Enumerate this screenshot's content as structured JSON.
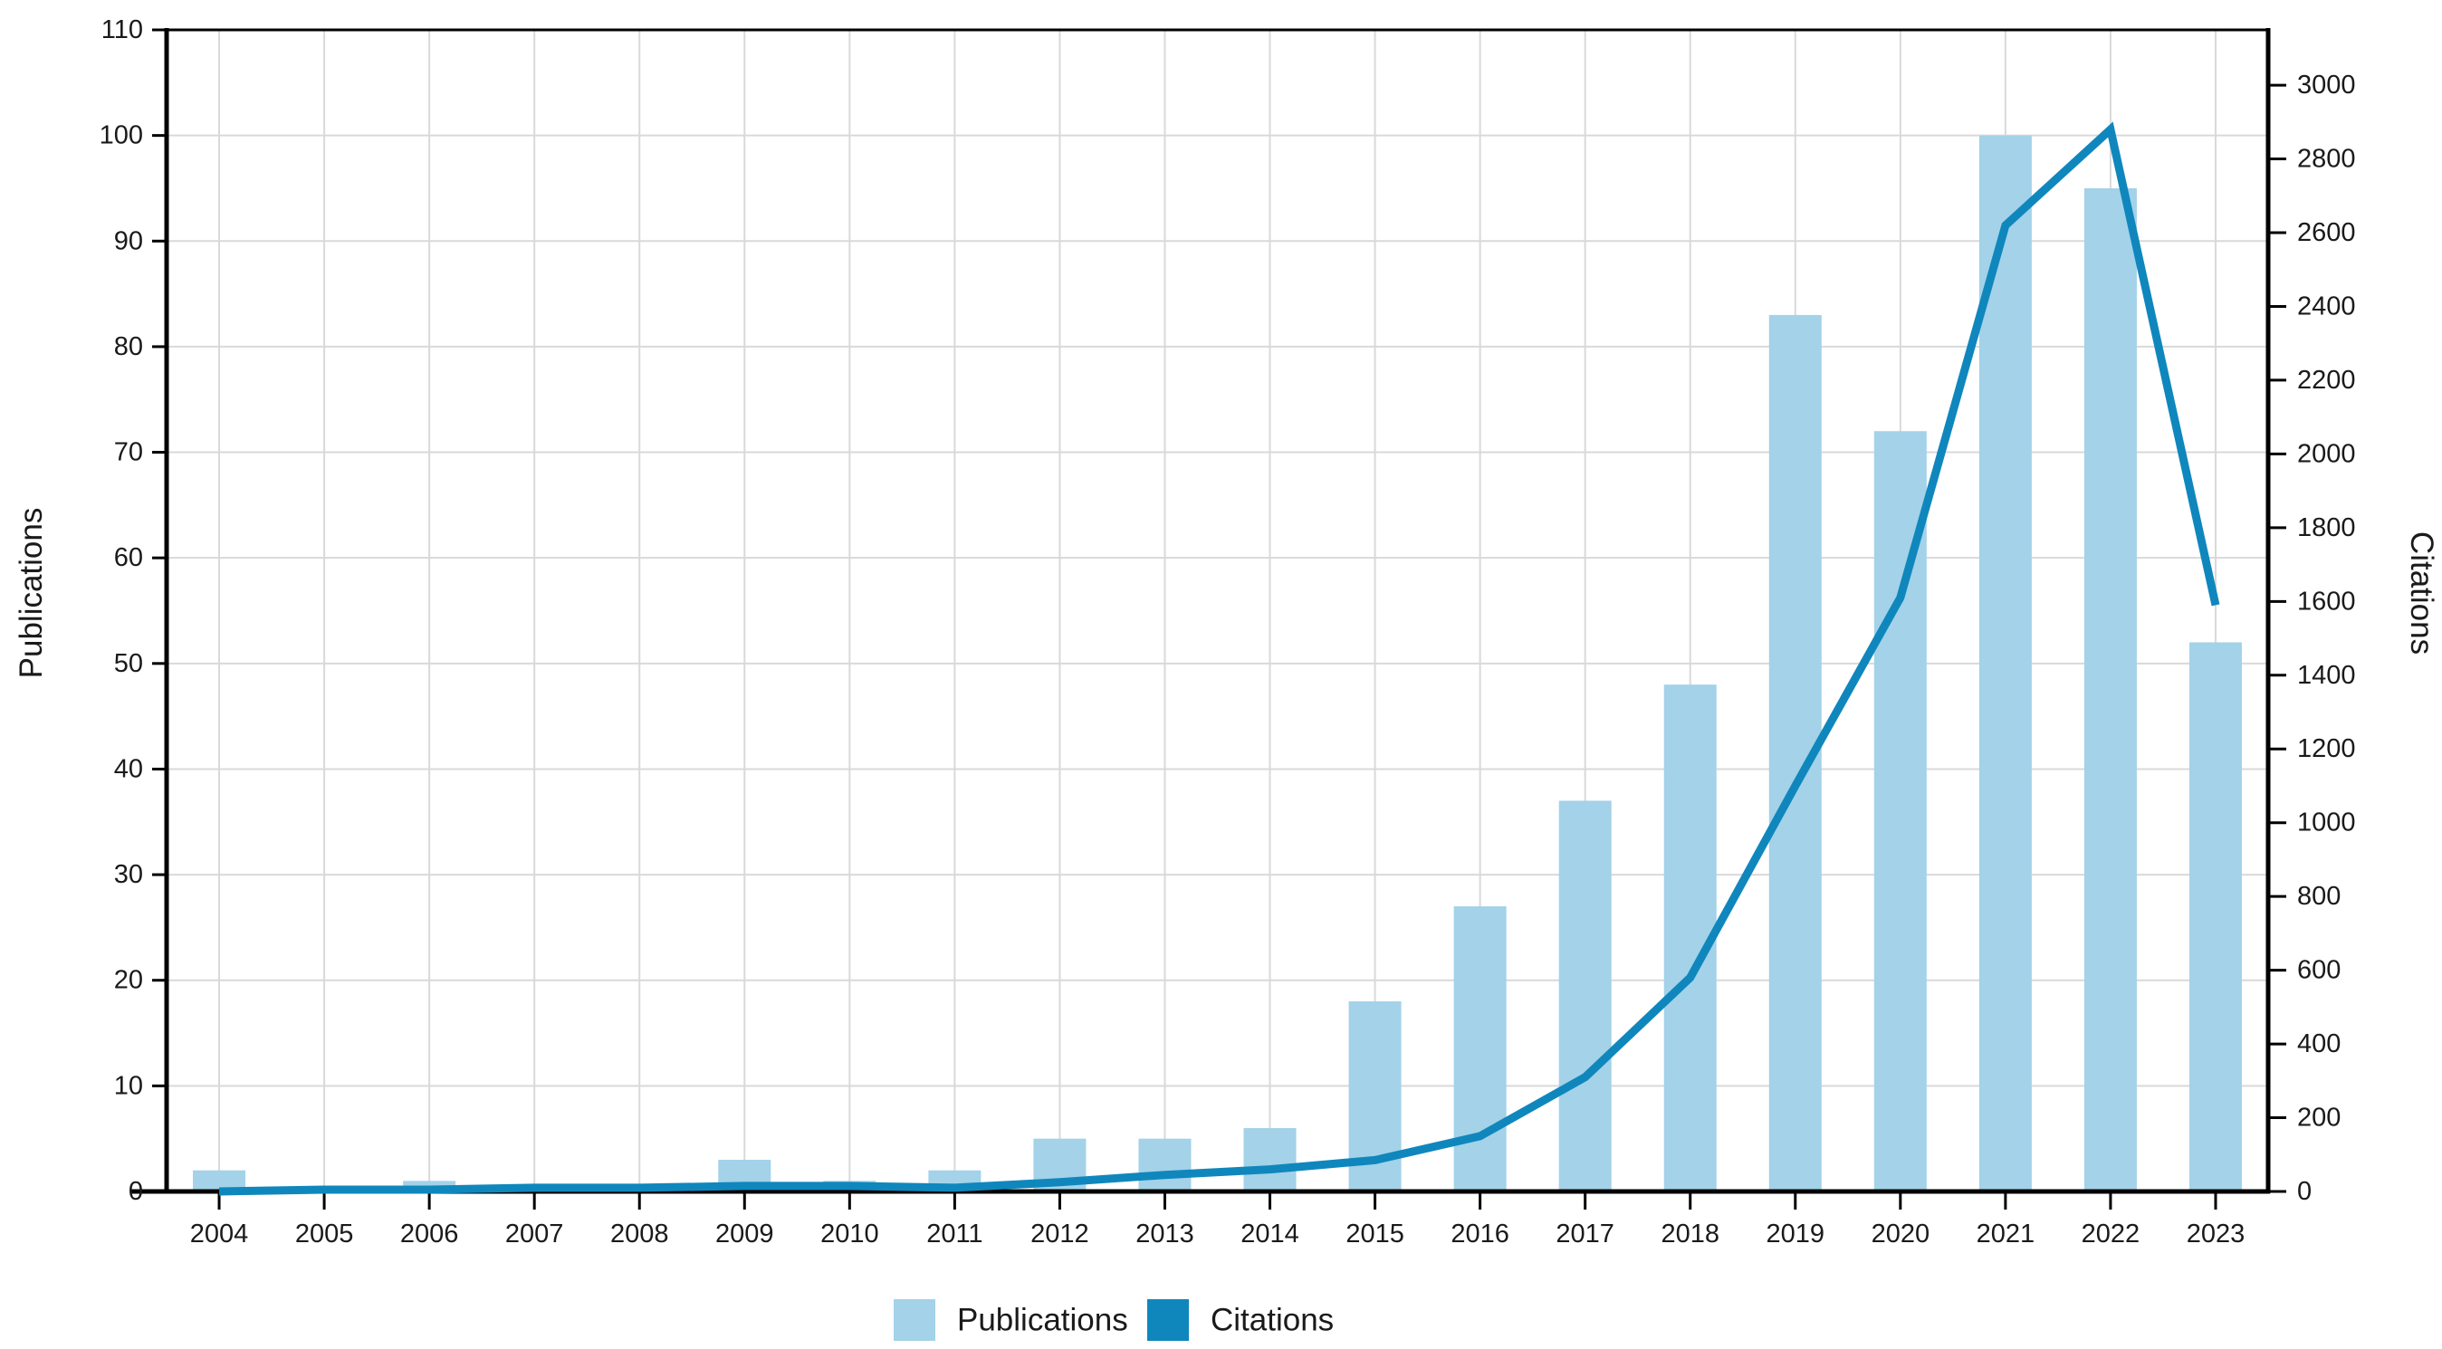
{
  "chart_data": {
    "type": "combo-bar-line",
    "categories": [
      "2004",
      "2005",
      "2006",
      "2007",
      "2008",
      "2009",
      "2010",
      "2011",
      "2012",
      "2013",
      "2014",
      "2015",
      "2016",
      "2017",
      "2018",
      "2019",
      "2020",
      "2021",
      "2022",
      "2023"
    ],
    "series": [
      {
        "name": "Publications",
        "type": "bar",
        "axis": "left",
        "color": "#A3D2E9",
        "values": [
          2,
          0,
          1,
          0,
          0,
          3,
          1,
          2,
          5,
          5,
          6,
          18,
          27,
          37,
          48,
          83,
          72,
          100,
          95,
          52
        ]
      },
      {
        "name": "Citations",
        "type": "line",
        "axis": "right",
        "color": "#0F87BD",
        "values": [
          0,
          5,
          5,
          10,
          10,
          15,
          15,
          10,
          25,
          45,
          60,
          85,
          150,
          310,
          580,
          1100,
          1610,
          2620,
          2880,
          1590
        ]
      }
    ],
    "left_axis": {
      "title": "Publications",
      "min": 0,
      "max": 110,
      "tick_step": 10
    },
    "right_axis": {
      "title": "Citations",
      "min": 0,
      "max": 3150,
      "tick_step": 200,
      "last_labeled_tick": 3000
    },
    "x_axis": {
      "tick_labels": [
        "2004",
        "2005",
        "2006",
        "2007",
        "2008",
        "2009",
        "2010",
        "2011",
        "2012",
        "2013",
        "2014",
        "2015",
        "2016",
        "2017",
        "2018",
        "2019",
        "2020",
        "2021",
        "2022",
        "2023"
      ]
    },
    "legend": {
      "position": "bottom",
      "items": [
        {
          "label": "Publications",
          "color": "#A3D2E9"
        },
        {
          "label": "Citations",
          "color": "#0F87BD"
        }
      ]
    },
    "grid": true,
    "gridline_color": "#D9D9D9",
    "axis_color": "#000000",
    "text_color": "#1A1A1A",
    "background_color": "#FFFFFF"
  }
}
